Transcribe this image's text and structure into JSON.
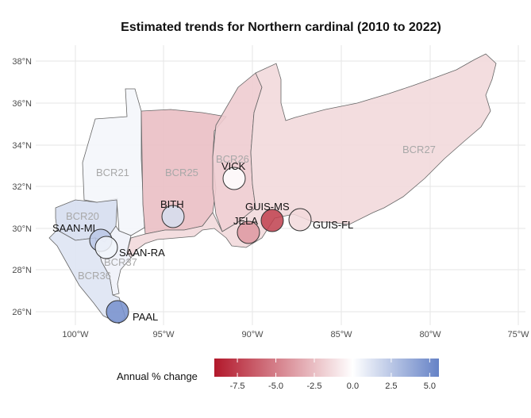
{
  "title": "Estimated trends for Northern cardinal (2010 to 2022)",
  "axes": {
    "x_ticks": [
      "100°W",
      "95°W",
      "90°W",
      "85°W",
      "80°W",
      "75°W"
    ],
    "y_ticks": [
      "26°N",
      "28°N",
      "30°N",
      "32°N",
      "34°N",
      "36°N",
      "38°N"
    ]
  },
  "regions": [
    {
      "label": "BCR21",
      "trend": 0.4
    },
    {
      "label": "BCR25",
      "trend": -2.5
    },
    {
      "label": "BCR26",
      "trend": -2.0
    },
    {
      "label": "BCR27",
      "trend": -1.5
    },
    {
      "label": "BCR20",
      "trend": 1.5
    },
    {
      "label": "BCR37",
      "trend": 0.6
    },
    {
      "label": "BCR36",
      "trend": 1.2
    }
  ],
  "sites": [
    {
      "label": "VICK",
      "trend": 0.0
    },
    {
      "label": "BITH",
      "trend": 1.5
    },
    {
      "label": "GUIS-MS",
      "trend": -7.5
    },
    {
      "label": "JELA",
      "trend": -4.0
    },
    {
      "label": "GUIS-FL",
      "trend": -1.5
    },
    {
      "label": "SAAN-MI",
      "trend": 2.5
    },
    {
      "label": "SAAN-RA",
      "trend": 0.5
    },
    {
      "label": "PAAL",
      "trend": 5.0
    }
  ],
  "legend": {
    "title": "Annual % change",
    "ticks": [
      "-7.5",
      "-5.0",
      "-2.5",
      "0.0",
      "2.5",
      "5.0"
    ],
    "min": -9,
    "max": 5.6,
    "colors": {
      "negative": "#b2182b",
      "neutral": "#ffffff",
      "positive": "#6582c6"
    }
  }
}
